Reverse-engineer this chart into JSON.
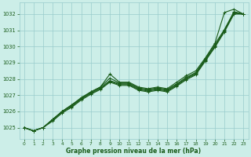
{
  "title": "Graphe pression niveau de la mer (hPa)",
  "bg_color": "#cceee8",
  "grid_color": "#99cccc",
  "line_color": "#1a5c1a",
  "xlim": [
    -0.5,
    23.5
  ],
  "ylim": [
    1024.3,
    1032.7
  ],
  "yticks": [
    1025,
    1026,
    1027,
    1028,
    1029,
    1030,
    1031,
    1032
  ],
  "xticks": [
    0,
    1,
    2,
    3,
    4,
    5,
    6,
    7,
    8,
    9,
    10,
    11,
    12,
    13,
    14,
    15,
    16,
    17,
    18,
    19,
    20,
    21,
    22,
    23
  ],
  "series": [
    [
      1025.0,
      1024.8,
      1025.0,
      1025.5,
      1026.0,
      1026.4,
      1026.8,
      1027.2,
      1027.5,
      1028.3,
      1027.8,
      1027.8,
      1027.5,
      1027.4,
      1027.5,
      1027.4,
      1027.8,
      1028.2,
      1028.5,
      1029.3,
      1030.2,
      1032.1,
      1032.3,
      1032.0
    ],
    [
      1025.0,
      1024.8,
      1025.0,
      1025.5,
      1026.0,
      1026.4,
      1026.85,
      1027.2,
      1027.5,
      1028.05,
      1027.75,
      1027.75,
      1027.45,
      1027.35,
      1027.45,
      1027.35,
      1027.7,
      1028.1,
      1028.4,
      1029.25,
      1030.15,
      1031.05,
      1032.15,
      1032.0
    ],
    [
      1025.0,
      1024.8,
      1025.0,
      1025.5,
      1026.0,
      1026.35,
      1026.8,
      1027.15,
      1027.45,
      1027.9,
      1027.7,
      1027.7,
      1027.4,
      1027.3,
      1027.4,
      1027.3,
      1027.65,
      1028.05,
      1028.35,
      1029.2,
      1030.05,
      1031.0,
      1032.1,
      1032.0
    ],
    [
      1025.0,
      1024.8,
      1025.0,
      1025.45,
      1025.95,
      1026.3,
      1026.75,
      1027.1,
      1027.4,
      1027.85,
      1027.65,
      1027.65,
      1027.35,
      1027.25,
      1027.35,
      1027.25,
      1027.6,
      1028.0,
      1028.3,
      1029.15,
      1030.0,
      1030.95,
      1032.05,
      1032.0
    ],
    [
      1025.0,
      1024.8,
      1025.0,
      1025.4,
      1025.9,
      1026.25,
      1026.7,
      1027.05,
      1027.35,
      1027.8,
      1027.6,
      1027.6,
      1027.3,
      1027.2,
      1027.3,
      1027.2,
      1027.55,
      1027.95,
      1028.25,
      1029.1,
      1029.95,
      1030.9,
      1032.0,
      1032.0
    ]
  ]
}
